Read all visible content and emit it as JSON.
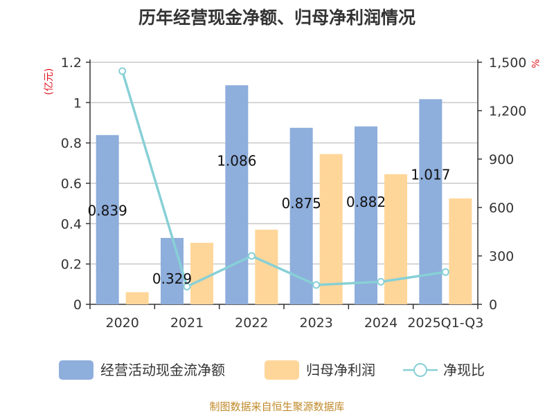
{
  "chart_data": {
    "type": "bar",
    "title": "历年经营现金净额、归母净利润情况",
    "left_unit": "(亿元)",
    "right_unit": "%",
    "categories": [
      "2020",
      "2021",
      "2022",
      "2023",
      "2024",
      "2025Q1-Q3"
    ],
    "left_ticks": [
      "0",
      "0.2",
      "0.4",
      "0.6",
      "0.8",
      "1",
      "1.2"
    ],
    "right_ticks": [
      "0",
      "300",
      "600",
      "900",
      "1,200",
      "1,500"
    ],
    "ylim_left": [
      0,
      1.2
    ],
    "ylim_right": [
      0,
      1500
    ],
    "grid": true,
    "legend_position": "bottom",
    "series": [
      {
        "name": "经营活动现金流净额",
        "type": "bar",
        "axis": "left",
        "color": "#8eaedc",
        "values": [
          0.839,
          0.329,
          1.086,
          0.875,
          0.882,
          1.017
        ],
        "labels": [
          "0.839",
          "0.329",
          "1.086",
          "0.875",
          "0.882",
          "1.017"
        ]
      },
      {
        "name": "归母净利润",
        "type": "bar",
        "axis": "left",
        "color": "#ffd699",
        "values": [
          0.06,
          0.305,
          0.37,
          0.745,
          0.645,
          0.525
        ]
      },
      {
        "name": "净现比",
        "type": "line",
        "axis": "right",
        "color": "#87d0d6",
        "values": [
          1445,
          110,
          300,
          120,
          140,
          200
        ]
      }
    ]
  },
  "source": "制图数据来自恒生聚源数据库"
}
